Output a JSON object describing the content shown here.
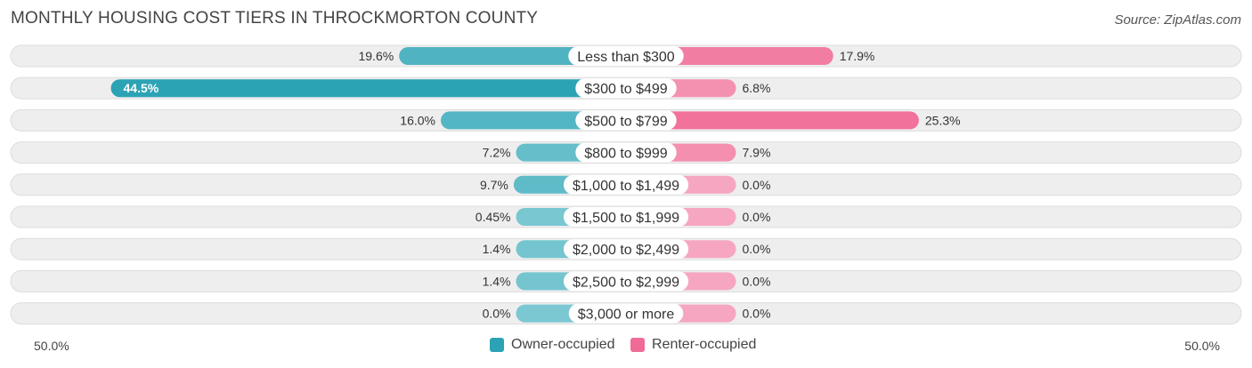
{
  "title": "MONTHLY HOUSING COST TIERS IN THROCKMORTON COUNTY",
  "source": "Source: ZipAtlas.com",
  "colors": {
    "owner": "#2ca3b5",
    "owner_light": "#7bc8d2",
    "renter": "#f06b95",
    "renter_light": "#f6a6c0",
    "row_bg": "#eeeeee"
  },
  "axis": {
    "left_label": "50.0%",
    "right_label": "50.0%"
  },
  "legend": {
    "owner": "Owner-occupied",
    "renter": "Renter-occupied"
  },
  "chart_data": {
    "type": "bar",
    "orientation": "diverging-horizontal",
    "title": "MONTHLY HOUSING COST TIERS IN THROCKMORTON COUNTY",
    "categories": [
      "Less than $300",
      "$300 to $499",
      "$500 to $799",
      "$800 to $999",
      "$1,000 to $1,499",
      "$1,500 to $1,999",
      "$2,000 to $2,499",
      "$2,500 to $2,999",
      "$3,000 or more"
    ],
    "series": [
      {
        "name": "Owner-occupied",
        "values": [
          19.6,
          44.5,
          16.0,
          7.2,
          9.7,
          0.45,
          1.4,
          1.4,
          0.0
        ],
        "labels": [
          "19.6%",
          "44.5%",
          "16.0%",
          "7.2%",
          "9.7%",
          "0.45%",
          "1.4%",
          "1.4%",
          "0.0%"
        ]
      },
      {
        "name": "Renter-occupied",
        "values": [
          17.9,
          6.8,
          25.3,
          7.9,
          0.0,
          0.0,
          0.0,
          0.0,
          0.0
        ],
        "labels": [
          "17.9%",
          "6.8%",
          "25.3%",
          "7.9%",
          "0.0%",
          "0.0%",
          "0.0%",
          "0.0%",
          "0.0%"
        ]
      }
    ],
    "xlim": [
      -50,
      50
    ],
    "legend_position": "bottom-center"
  }
}
